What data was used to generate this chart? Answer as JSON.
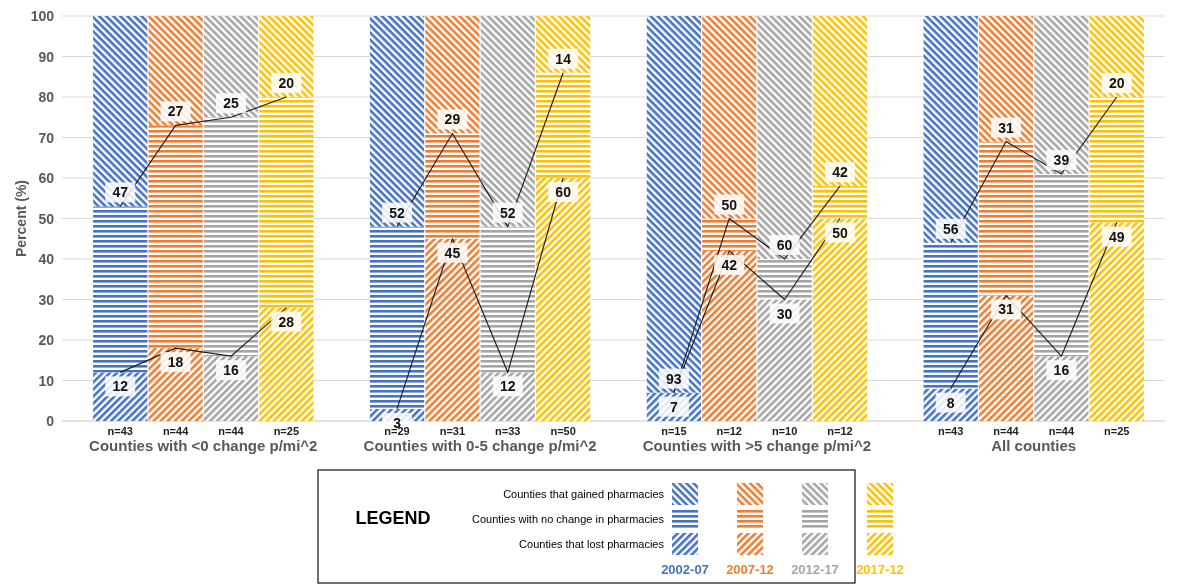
{
  "chart_data": {
    "type": "bar",
    "stacked": true,
    "ylabel": "Percent (%)",
    "legend_title": "LEGEND",
    "legend": "bottom",
    "grid": "y",
    "categories": [
      "n=43",
      "n=44",
      "n=44",
      "n=25",
      null,
      "n=29",
      "n=31",
      "n=33",
      "n=50",
      null,
      "n=15",
      "n=12",
      "n=10",
      "n=12",
      null,
      "n=43",
      "n=44",
      "n=44",
      "n=25"
    ],
    "ylim": [
      0,
      100
    ],
    "yticks": [
      0,
      10,
      20,
      30,
      40,
      50,
      60,
      70,
      80,
      90,
      100
    ],
    "series": [
      {
        "name": "Counties that lost pharmacies",
        "colors": [
          "#4472c4",
          "#ed7d31",
          "#a5a5a5",
          "#ffc000",
          null,
          "#4472c4",
          "#ed7d31",
          "#a5a5a5",
          "#ffc000",
          null,
          "#4472c4",
          "#ed7d31",
          "#a5a5a5",
          "#ffc000",
          null,
          "#4472c4",
          "#ed7d31",
          "#a5a5a5",
          "#ffc000"
        ],
        "values": [
          12,
          18,
          16,
          28,
          null,
          3,
          45,
          12,
          60,
          null,
          7,
          42,
          30,
          50,
          null,
          8,
          31,
          16,
          49
        ],
        "value_labels": [
          "12",
          "18",
          "16",
          "28",
          null,
          "3",
          "45",
          "12",
          "60",
          null,
          "7",
          "42",
          "30",
          "50",
          null,
          "8",
          "31",
          "16",
          "49"
        ]
      },
      {
        "name": "Counties with no change in pharmacies",
        "colors": [
          "#4472c4",
          "#ed7d31",
          "#a5a5a5",
          "#ffc000",
          null,
          "#4472c4",
          "#ed7d31",
          "#a5a5a5",
          "#ffc000",
          null,
          "#4472c4",
          "#ed7d31",
          "#a5a5a5",
          "#ffc000",
          null,
          "#4472c4",
          "#ed7d31",
          "#a5a5a5",
          "#ffc000"
        ],
        "values": [
          41,
          55,
          59,
          52,
          null,
          45,
          26,
          36,
          26,
          null,
          0,
          8,
          10,
          8,
          null,
          36,
          38,
          45,
          31
        ]
      },
      {
        "name": "Counties that gained pharmacies",
        "colors": [
          "#4472c4",
          "#ed7d31",
          "#a5a5a5",
          "#ffc000",
          null,
          "#4472c4",
          "#ed7d31",
          "#a5a5a5",
          "#ffc000",
          null,
          "#4472c4",
          "#ed7d31",
          "#a5a5a5",
          "#ffc000",
          null,
          "#4472c4",
          "#ed7d31",
          "#a5a5a5",
          "#ffc000"
        ],
        "values": [
          47,
          27,
          25,
          20,
          null,
          52,
          29,
          52,
          14,
          null,
          93,
          50,
          60,
          42,
          null,
          56,
          31,
          39,
          20
        ],
        "value_labels": [
          "47",
          "27",
          "25",
          "20",
          null,
          "52",
          "29",
          "52",
          "14",
          null,
          "93",
          "50",
          "60",
          "42",
          null,
          "56",
          "31",
          "39",
          "20"
        ]
      },
      {
        "type": "line",
        "color": "#222222",
        "marker": "none",
        "values": [
          12,
          18,
          16,
          28,
          null,
          3,
          45,
          12,
          60,
          null,
          7,
          42,
          30,
          50,
          null,
          8,
          31,
          16,
          49
        ]
      },
      {
        "type": "line",
        "color": "#222222",
        "marker": "none",
        "values": [
          53,
          73,
          75,
          80,
          null,
          48,
          71,
          48,
          86,
          null,
          7,
          50,
          40,
          58,
          null,
          44,
          69,
          61,
          80
        ]
      }
    ],
    "annotations": [
      "Counties with <0 change p/mi^2",
      "Counties with 0-5 change p/mi^2",
      "Counties with >5 change p/mi^2",
      "All counties",
      "2002-07",
      "2007-12",
      "2012-17",
      "2017-12"
    ]
  }
}
